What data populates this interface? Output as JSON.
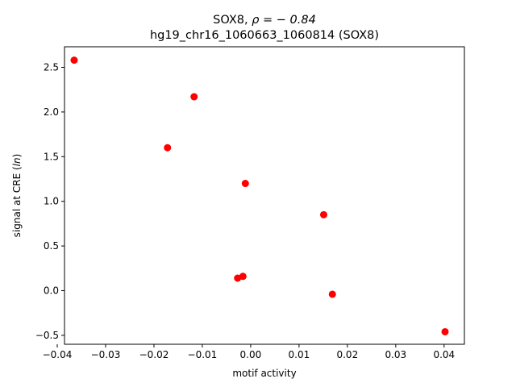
{
  "chart_data": {
    "type": "scatter",
    "title_line1_prefix": "SOX8, ",
    "title_line1_rho": "ρ = − 0.84",
    "title_line2": "hg19_chr16_1060663_1060814 (SOX8)",
    "xlabel": "motif activity",
    "ylabel_prefix": "signal at CRE (",
    "ylabel_italic": "ln",
    "ylabel_suffix": ")",
    "xlim": [
      -0.0385,
      0.0442
    ],
    "ylim": [
      -0.6,
      2.73
    ],
    "x_ticks": [
      -0.04,
      -0.03,
      -0.02,
      -0.01,
      0.0,
      0.01,
      0.02,
      0.03,
      0.04
    ],
    "x_tick_labels": [
      "−0.04",
      "−0.03",
      "−0.02",
      "−0.01",
      "0.00",
      "0.01",
      "0.02",
      "0.03",
      "0.04"
    ],
    "y_ticks": [
      -0.5,
      0.0,
      0.5,
      1.0,
      1.5,
      2.0,
      2.5
    ],
    "y_tick_labels": [
      "−0.5",
      "0.0",
      "0.5",
      "1.0",
      "1.5",
      "2.0",
      "2.5"
    ],
    "marker_color": "#ff0000",
    "points": [
      {
        "x": -0.0365,
        "y": 2.58
      },
      {
        "x": -0.0117,
        "y": 2.17
      },
      {
        "x": -0.0172,
        "y": 1.6
      },
      {
        "x": -0.0011,
        "y": 1.2
      },
      {
        "x": 0.0151,
        "y": 0.85
      },
      {
        "x": -0.0027,
        "y": 0.14
      },
      {
        "x": -0.0016,
        "y": 0.16
      },
      {
        "x": 0.0169,
        "y": -0.04
      },
      {
        "x": 0.0402,
        "y": -0.46
      }
    ]
  }
}
